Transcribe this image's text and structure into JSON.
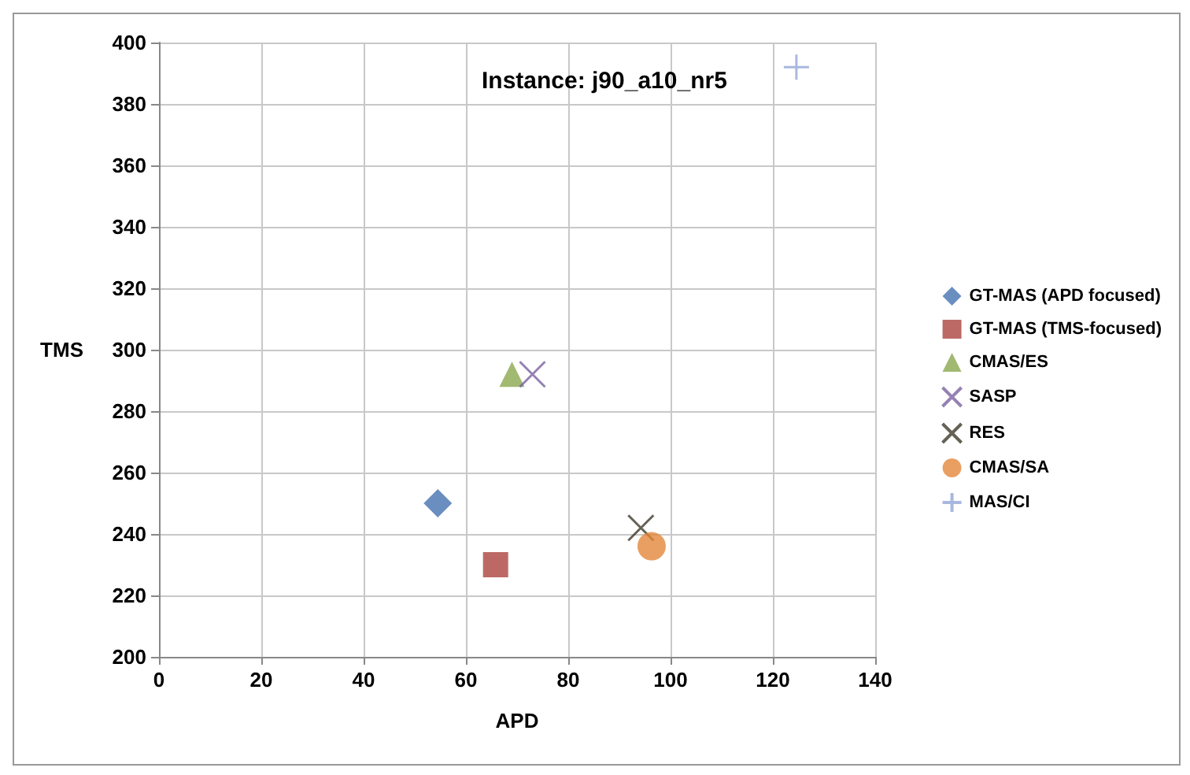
{
  "chart_data": {
    "type": "scatter",
    "title": "Instance: j90_a10_nr5",
    "xlabel": "APD",
    "ylabel": "TMS",
    "xlim": [
      0,
      140
    ],
    "xticks": [
      0,
      20,
      40,
      60,
      80,
      100,
      120,
      140
    ],
    "ylim": [
      200,
      400
    ],
    "yticks": [
      200,
      220,
      240,
      260,
      280,
      300,
      320,
      340,
      360,
      380,
      400
    ],
    "grid": true,
    "legend": "right",
    "series": [
      {
        "name": "GT-MAS (APD focused)",
        "color": "#4672b0",
        "marker": "diamond",
        "x": [
          54.5
        ],
        "values": [
          250
        ]
      },
      {
        "name": "GT-MAS (TMS-focused)",
        "color": "#ab4340",
        "marker": "square",
        "x": [
          65.8
        ],
        "values": [
          230
        ]
      },
      {
        "name": "CMAS/ES",
        "color": "#8aa84e",
        "marker": "triangle",
        "x": [
          69
        ],
        "values": [
          292
        ]
      },
      {
        "name": "SASP",
        "color": "#7a62a0",
        "marker": "cross",
        "x": [
          73
        ],
        "values": [
          292
        ]
      },
      {
        "name": "RES",
        "color": "#3f3a2a",
        "marker": "cross",
        "x": [
          94.2
        ],
        "values": [
          242
        ]
      },
      {
        "name": "CMAS/SA",
        "color": "#e3873a",
        "marker": "circle",
        "x": [
          96.3
        ],
        "values": [
          236
        ]
      },
      {
        "name": "MAS/CI",
        "color": "#93a6d6",
        "marker": "plus",
        "x": [
          124.6
        ],
        "values": [
          392
        ]
      }
    ]
  }
}
